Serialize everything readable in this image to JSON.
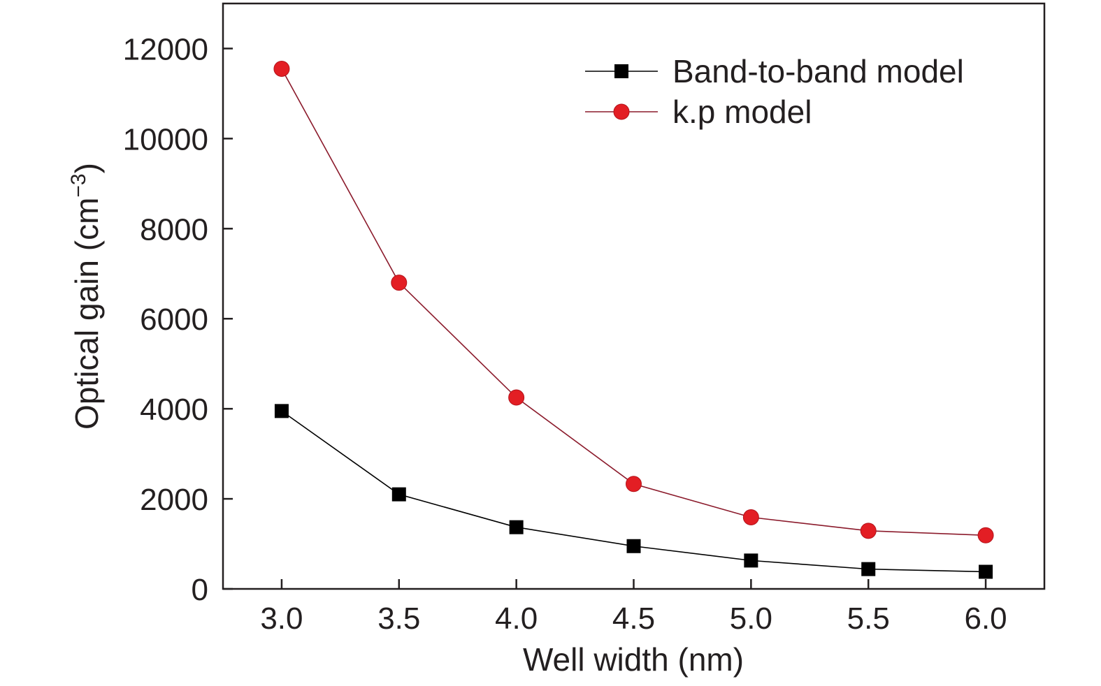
{
  "chart_data": {
    "type": "line",
    "title": "",
    "xlabel": "Well width (nm)",
    "ylabel": "Optical gain (cm",
    "ylabel_sup": "−3",
    "ylabel_close": ")",
    "xlim": [
      2.75,
      6.25
    ],
    "ylim": [
      0,
      13000
    ],
    "xticks": [
      3.0,
      3.5,
      4.0,
      4.5,
      5.0,
      5.5,
      6.0
    ],
    "xtick_labels": [
      "3.0",
      "3.5",
      "4.0",
      "4.5",
      "5.0",
      "5.5",
      "6.0"
    ],
    "yticks": [
      0,
      2000,
      4000,
      6000,
      8000,
      10000,
      12000
    ],
    "ytick_labels": [
      "0",
      "2000",
      "4000",
      "6000",
      "8000",
      "10000",
      "12000"
    ],
    "grid": false,
    "legend_position": "top-right",
    "series": [
      {
        "name": "Band-to-band model",
        "marker": "square",
        "color": "#000000",
        "x": [
          3.0,
          3.5,
          4.0,
          4.5,
          5.0,
          5.5,
          6.0
        ],
        "y": [
          3950,
          2100,
          1370,
          950,
          630,
          440,
          380
        ]
      },
      {
        "name": "k.p model",
        "marker": "circle",
        "color": "#e31e24",
        "line_color": "#8b1a2b",
        "x": [
          3.0,
          3.5,
          4.0,
          4.5,
          5.0,
          5.5,
          6.0
        ],
        "y": [
          11550,
          6800,
          4250,
          2330,
          1590,
          1290,
          1190
        ]
      }
    ]
  }
}
